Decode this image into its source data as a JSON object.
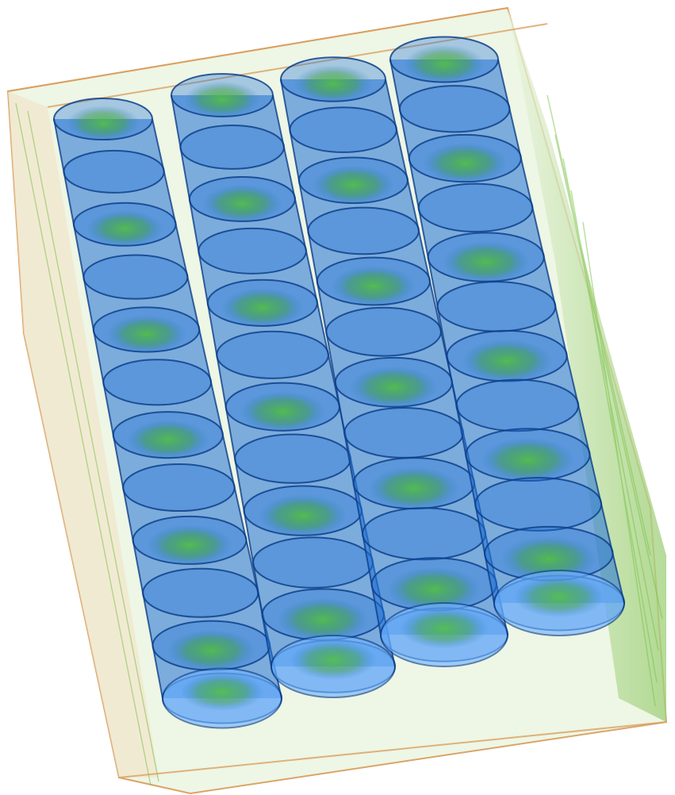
{
  "image": {
    "subject": "ct-scan-volume-render",
    "background_color": "#ffffff",
    "crate": {
      "outline_color_warm": "#d9a060",
      "outline_color_green": "#7cc24a",
      "fill_color": "#e8f3d8"
    },
    "containers": {
      "columns": 4,
      "cylinders_per_column": 12,
      "body_color": "#1f6fd6",
      "rim_color": "#0d3f8a",
      "core_color": "#44b033",
      "highlight_color": "#6fb3ff"
    }
  }
}
